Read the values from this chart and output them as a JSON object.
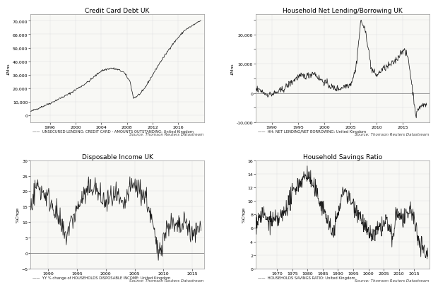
{
  "title_top_left": "Credit Card Debt UK",
  "title_top_right": "Household Net Lending/Borrowing UK",
  "title_bot_left": "Disposable Income UK",
  "title_bot_right": "Household Savings Ratio",
  "cc_ylabel": "£Mns",
  "cc_source": "Source: Thomson Reuters Datastream",
  "cc_legend": "UNSECURED LENDING: CREDIT CARD - AMOUNTS OUTSTANDING: United Kingdom",
  "nl_ylabel": "£Mns",
  "nl_source": "Source: Thomson Reuters Datastream",
  "nl_legend": "HH: NET LENDING/NET BORROWING: United Kingdom",
  "di_ylabel": "%Chge",
  "di_source": "Source: Thomson Reuters Datastream",
  "di_legend": "YY % change of HOUSEHOLDS DISPOSABLE INCOME: United Kingdom",
  "sr_ylabel": "%Chge",
  "sr_source": "Source: Thomson Reuters Datastream",
  "sr_legend": "HOUSEHOLDS SAVINGS RATIO: United Kingdom",
  "line_color": "#1a1a1a",
  "background_color": "#ffffff",
  "plot_bg": "#f8f8f5",
  "grid_color": "#dddddd",
  "zero_line_color": "#888888",
  "title_fontsize": 6.5,
  "label_fontsize": 4.5,
  "tick_fontsize": 4.5,
  "source_fontsize": 4.0,
  "legend_fontsize": 3.8
}
